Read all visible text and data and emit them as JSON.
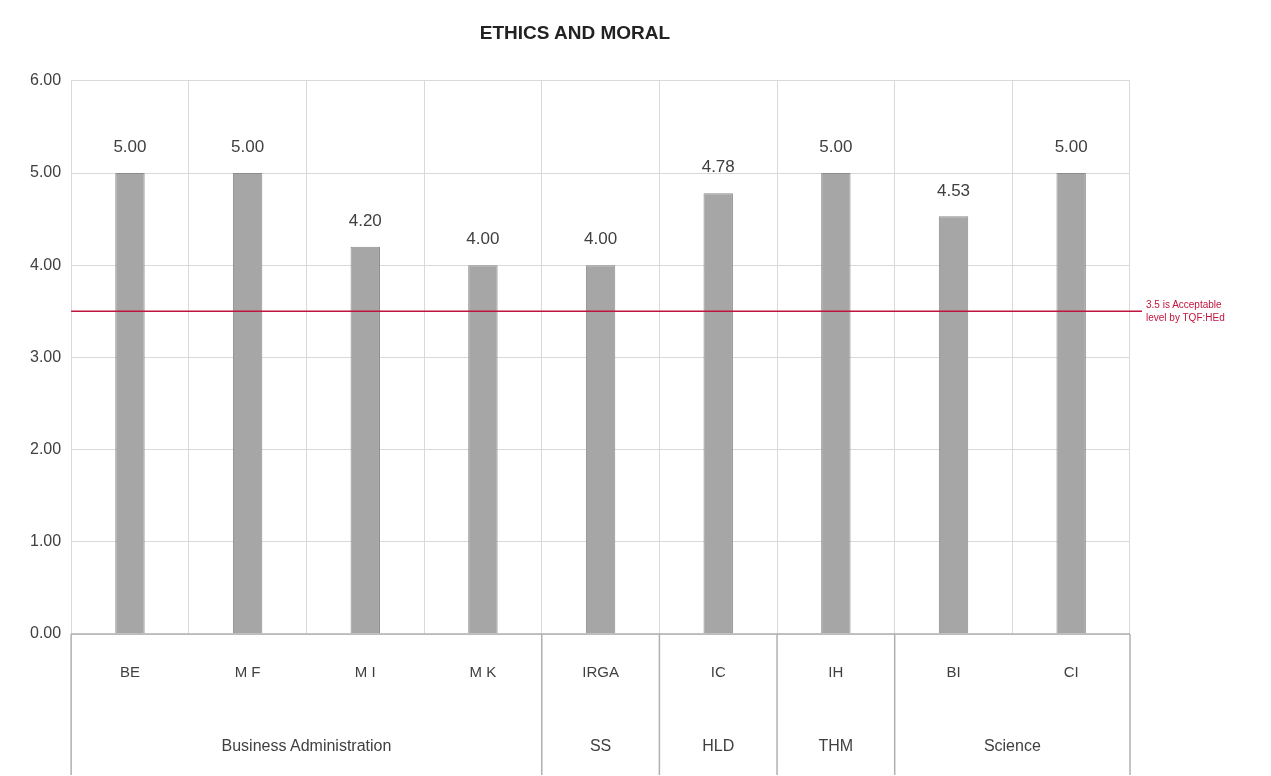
{
  "chart_data": {
    "type": "bar",
    "title": "ETHICS AND MORAL",
    "categories": [
      "BE",
      "M F",
      "M I",
      "M K",
      "IRGA",
      "IC",
      "IH",
      "BI",
      "CI"
    ],
    "values": [
      5.0,
      5.0,
      4.2,
      4.0,
      4.0,
      4.78,
      5.0,
      4.53,
      5.0
    ],
    "value_labels": [
      "5.00",
      "5.00",
      "4.20",
      "4.00",
      "4.00",
      "4.78",
      "5.00",
      "4.53",
      "5.00"
    ],
    "color": "#a6a6a6",
    "ylim": [
      0,
      6
    ],
    "yticks": [
      {
        "value": 0,
        "label": "0.00"
      },
      {
        "value": 1,
        "label": "1.00"
      },
      {
        "value": 2,
        "label": "2.00"
      },
      {
        "value": 3,
        "label": "3.00"
      },
      {
        "value": 4,
        "label": "4.00"
      },
      {
        "value": 5,
        "label": "5.00"
      },
      {
        "value": 6,
        "label": "6.00"
      }
    ],
    "grid": true,
    "ref_lines": [
      {
        "axis": "y",
        "value": 3.5,
        "label": "3.5 is Acceptable level by TQF:HEd",
        "color": "#c0143c"
      }
    ],
    "annotations": [
      "Business Administration",
      "SS",
      "HLD",
      "THM",
      "Science"
    ]
  }
}
